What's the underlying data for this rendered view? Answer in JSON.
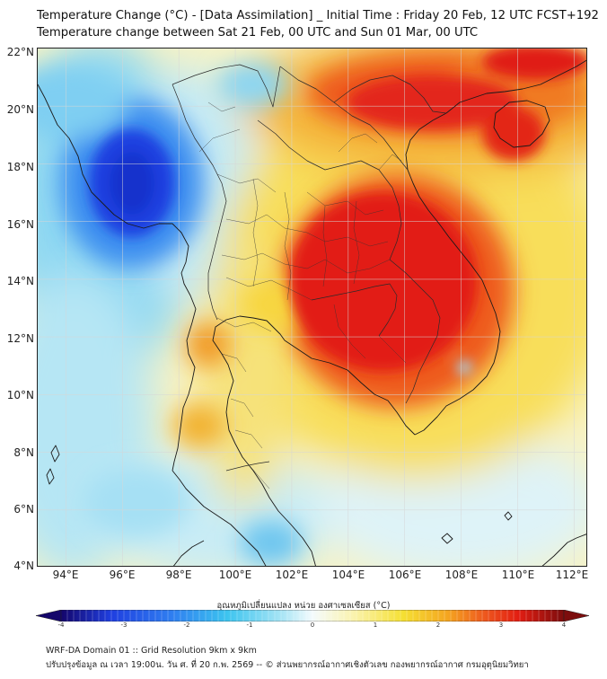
{
  "title": {
    "line1": "Temperature Change (°C) - [Data Assimilation] _ Initial Time : Friday 20 Feb, 12 UTC FCST+192",
    "line2": "Temperature change between Sat 21 Feb, 00 UTC and Sun 01 Mar, 00 UTC"
  },
  "axes": {
    "lat_labels": [
      "22°N",
      "20°N",
      "18°N",
      "16°N",
      "14°N",
      "12°N",
      "10°N",
      "8°N",
      "6°N",
      "4°N"
    ],
    "lon_labels": [
      "94°E",
      "96°E",
      "98°E",
      "100°E",
      "102°E",
      "104°E",
      "106°E",
      "108°E",
      "110°E",
      "112°E"
    ],
    "lat_range": [
      4,
      22
    ],
    "lon_range": [
      93,
      112.5
    ],
    "grid": true
  },
  "colorbar": {
    "label": "อุณหภูมิเปลี่ยนแปลง หน่วย องศาเซลเซียส (°C)",
    "range": [
      -4,
      4
    ],
    "ticks": [
      "-4",
      "-3",
      "-2",
      "-1",
      "0",
      "1",
      "2",
      "3",
      "4"
    ],
    "colors": {
      "min": "#14066b",
      "dark_blue": "#1f3fe0",
      "blue": "#2f7ef0",
      "cyan": "#3cc4ef",
      "light_cyan": "#a9e5f5",
      "near_zero": "#f4fbfd",
      "light_yellow": "#faf3b0",
      "yellow": "#f5e033",
      "orange": "#f4a420",
      "red_orange": "#ee5a1e",
      "red": "#e21d12",
      "max": "#7c0d0d"
    }
  },
  "footer": {
    "line1": "WRF-DA Domain 01 :: Grid Resolution 9km x 9km",
    "line2": "ปรับปรุงข้อมูล ณ เวลา 19:00น. วัน ศ. ที่ 20 ก.พ. 2569 -- © ส่วนพยากรณ์อากาศเชิงตัวเลข กองพยากรณ์อากาศ กรมอุตุนิยมวิทยา"
  }
}
